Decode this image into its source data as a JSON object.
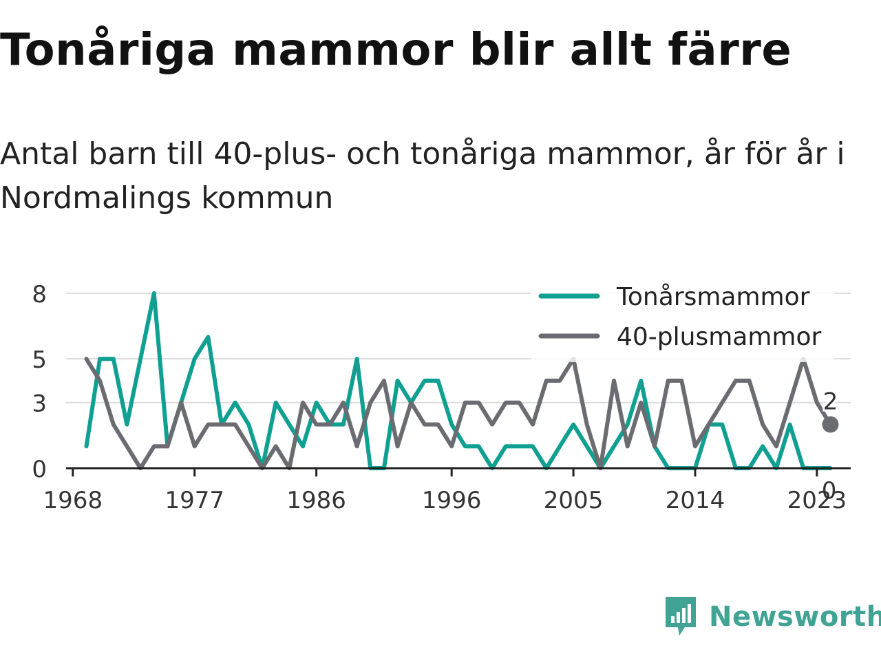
{
  "title": "Tonåriga mammor blir allt färre",
  "subtitle": "Antal barn till 40-plus- och tonåriga mammor, år för år i Nordmalings kommun",
  "brand": {
    "name": "Newsworthy",
    "color": "#40a393",
    "icon": "bar-chart-speech-bubble-icon"
  },
  "chart_data": {
    "type": "line",
    "x": [
      1969,
      1970,
      1971,
      1972,
      1973,
      1974,
      1975,
      1976,
      1977,
      1978,
      1979,
      1980,
      1981,
      1982,
      1983,
      1984,
      1985,
      1986,
      1987,
      1988,
      1989,
      1990,
      1991,
      1992,
      1993,
      1994,
      1995,
      1996,
      1997,
      1998,
      1999,
      2000,
      2001,
      2002,
      2003,
      2004,
      2005,
      2006,
      2007,
      2008,
      2009,
      2010,
      2011,
      2012,
      2013,
      2014,
      2015,
      2016,
      2017,
      2018,
      2019,
      2020,
      2021,
      2022,
      2023,
      2024
    ],
    "series": [
      {
        "name": "Tonårsmammor",
        "color": "#10a091",
        "values": [
          1,
          5,
          5,
          2,
          5,
          8,
          1,
          3,
          5,
          6,
          2,
          3,
          2,
          0,
          3,
          2,
          1,
          3,
          2,
          2,
          5,
          0,
          0,
          4,
          3,
          4,
          4,
          2,
          1,
          1,
          0,
          1,
          1,
          1,
          0,
          1,
          2,
          1,
          0,
          1,
          2,
          4,
          1,
          0,
          0,
          0,
          2,
          2,
          0,
          0,
          1,
          0,
          2,
          0,
          0,
          0
        ]
      },
      {
        "name": "40-plusmammor",
        "color": "#6b6b72",
        "values": [
          5,
          4,
          2,
          1,
          0,
          1,
          1,
          3,
          1,
          2,
          2,
          2,
          1,
          0,
          1,
          0,
          3,
          2,
          2,
          3,
          1,
          3,
          4,
          1,
          3,
          2,
          2,
          1,
          3,
          3,
          2,
          3,
          3,
          2,
          4,
          4,
          5,
          2,
          0,
          4,
          1,
          3,
          1,
          4,
          4,
          1,
          2,
          3,
          4,
          4,
          2,
          1,
          3,
          5,
          3,
          2
        ]
      }
    ],
    "x_ticks": [
      "1968",
      "1977",
      "1986",
      "1996",
      "2005",
      "2014",
      "2023"
    ],
    "y_ticks": [
      "0",
      "3",
      "5",
      "8"
    ],
    "ylim": [
      0,
      8.5
    ],
    "xlim": [
      1967.5,
      2025.5
    ],
    "end_labels": {
      "40-plusmammor": "2",
      "Tonårsmammor": "0"
    },
    "legend": "top-right",
    "grid": "horizontal"
  }
}
